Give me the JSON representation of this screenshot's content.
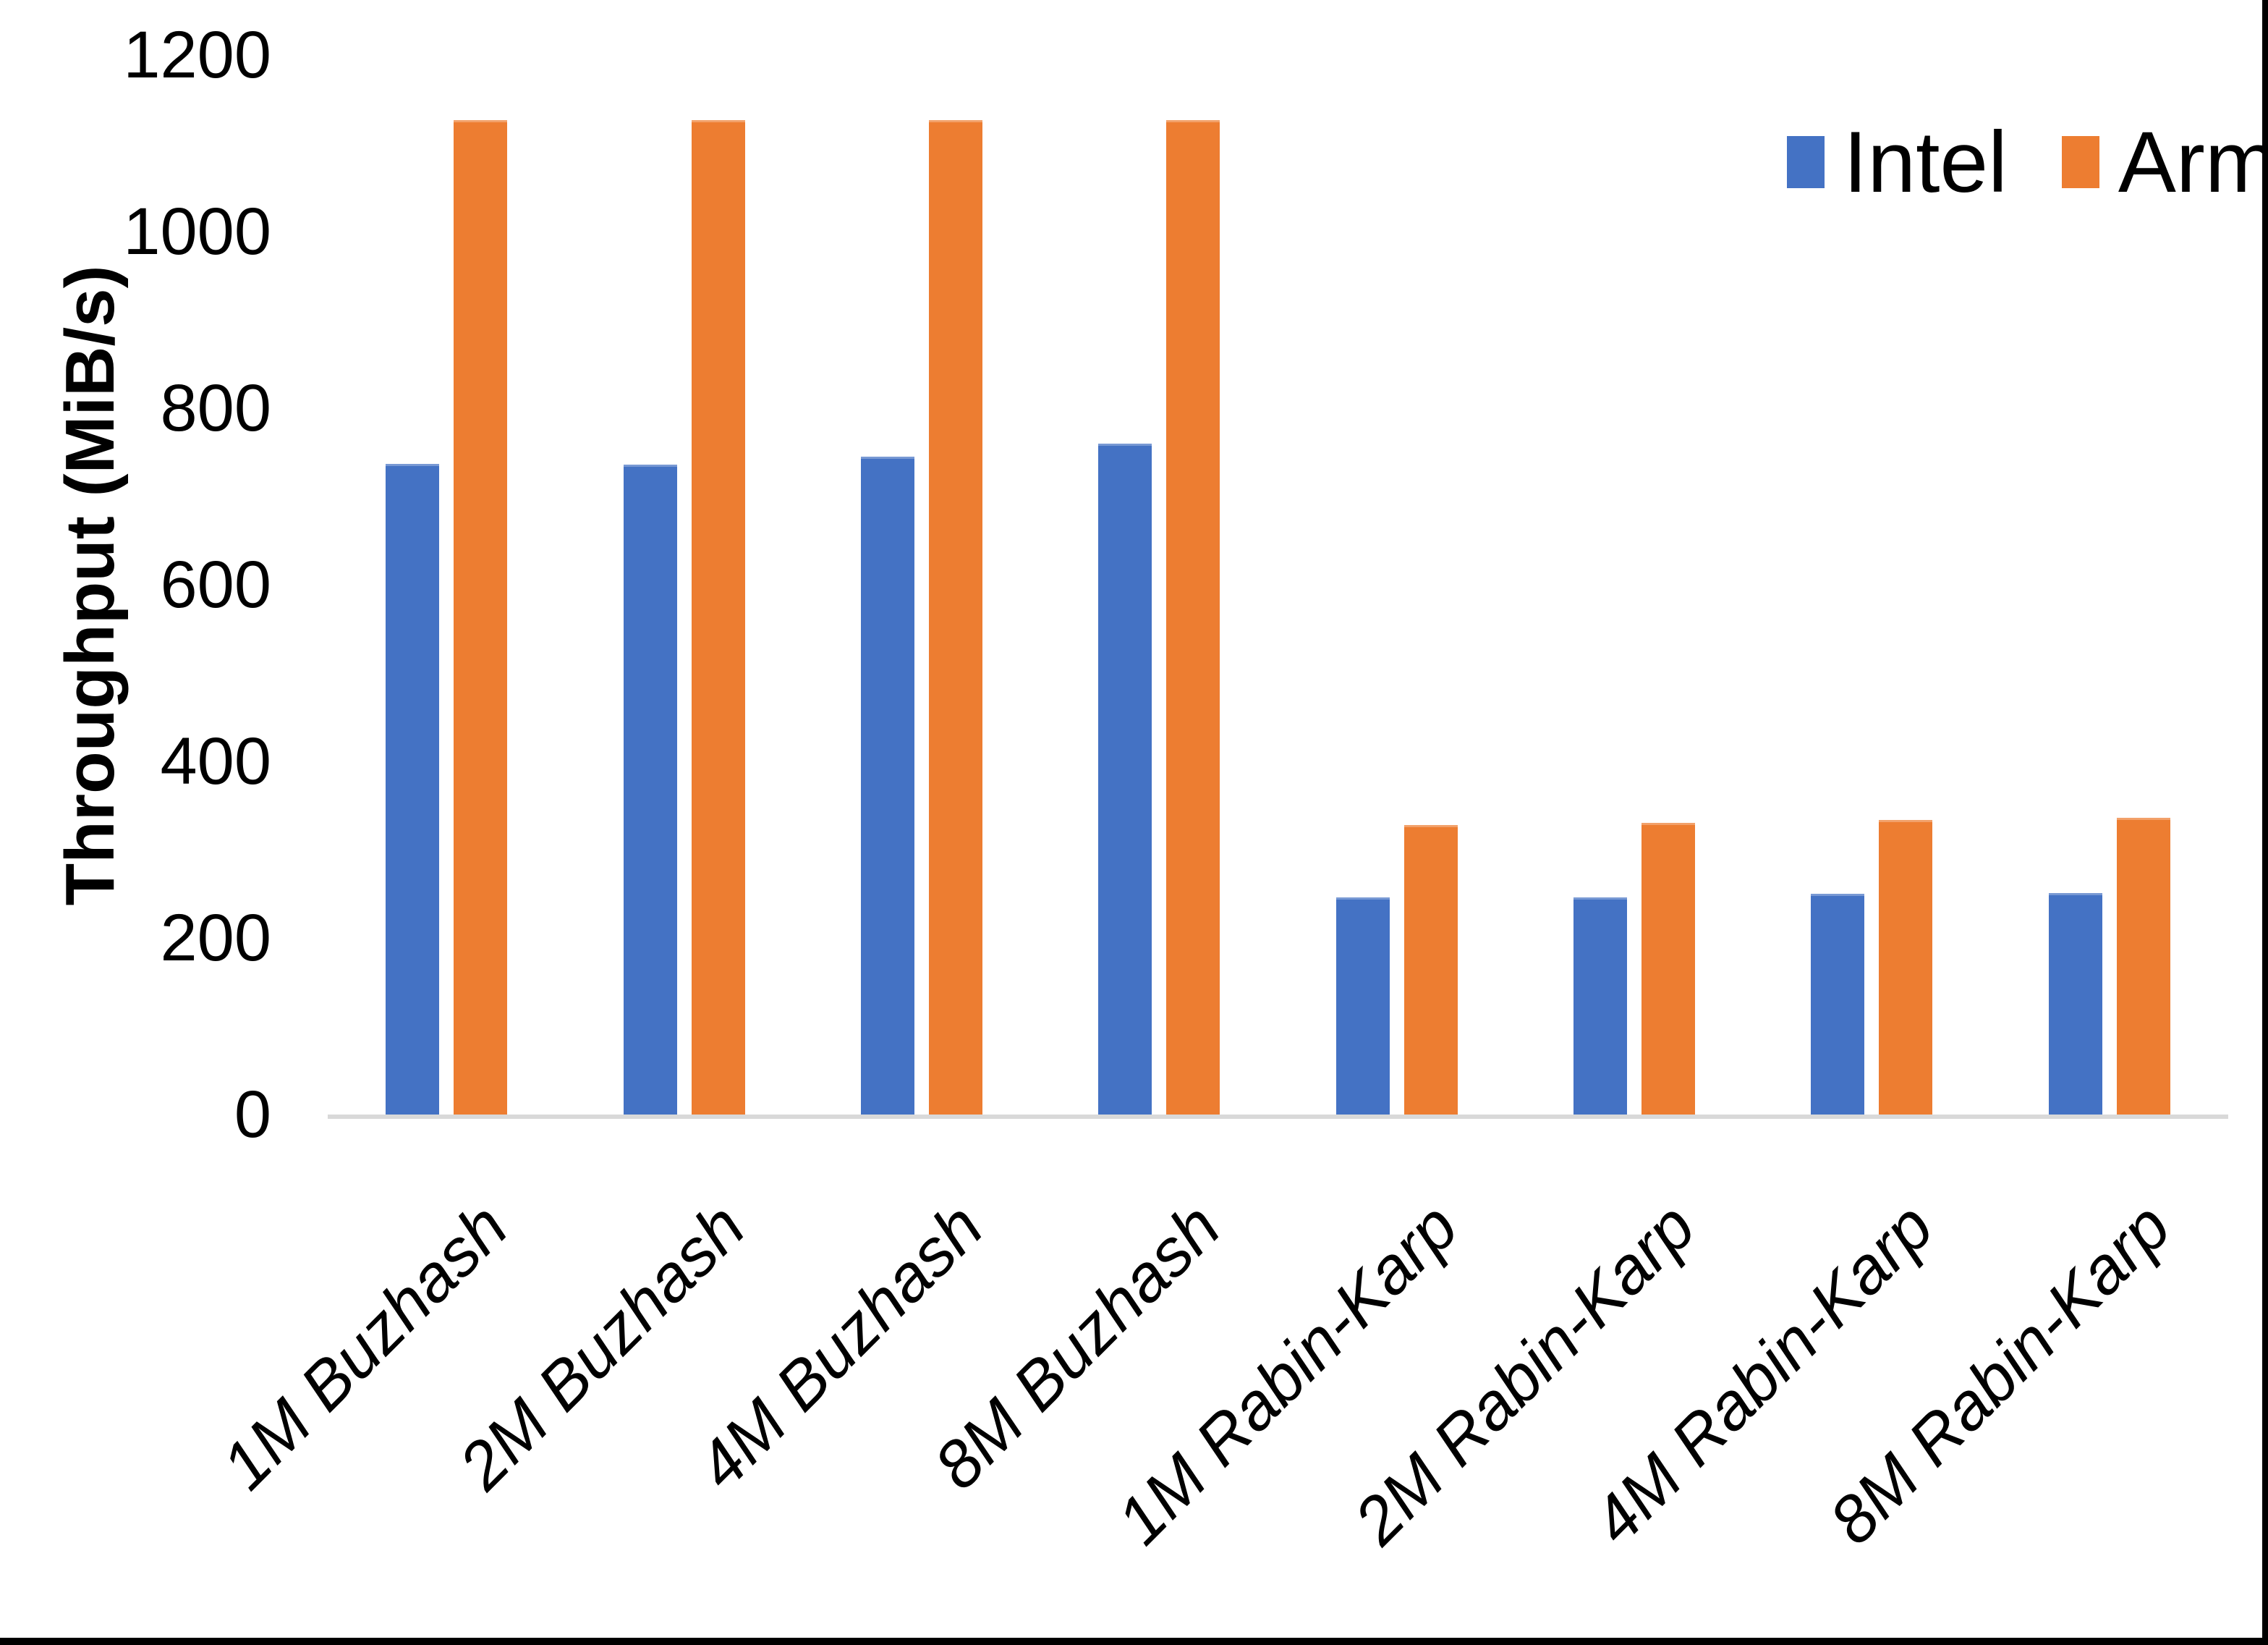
{
  "chart_data": {
    "type": "bar",
    "title": "",
    "categories": [
      "1M Buzhash",
      "2M Buzhash",
      "4M Buzhash",
      "8M Buzhash",
      "1M Rabin-Karp",
      "2M Rabin-Karp",
      "4M Rabin-Karp",
      "8M Rabin-Karp"
    ],
    "series": [
      {
        "name": "Intel",
        "color": "#4472C4",
        "values": [
          737,
          736,
          745,
          760,
          246,
          246,
          250,
          251
        ]
      },
      {
        "name": "Arm",
        "color": "#ED7D31",
        "values": [
          1126,
          1126,
          1126,
          1126,
          328,
          330,
          334,
          336
        ]
      }
    ],
    "xlabel": "",
    "ylabel": "Throughput (MiB/s)",
    "ylim": [
      0,
      1200
    ],
    "yticks": [
      0,
      200,
      400,
      600,
      800,
      1000,
      1200
    ],
    "grid": false,
    "legend_position": "top-right",
    "legend": [
      "Intel",
      "Arm"
    ]
  },
  "colors": {
    "intel": "#4472C4",
    "arm": "#ED7D31",
    "axis_line": "#D9D9D9",
    "text": "#000000",
    "frame": "#000000",
    "background": "#FFFFFF"
  }
}
